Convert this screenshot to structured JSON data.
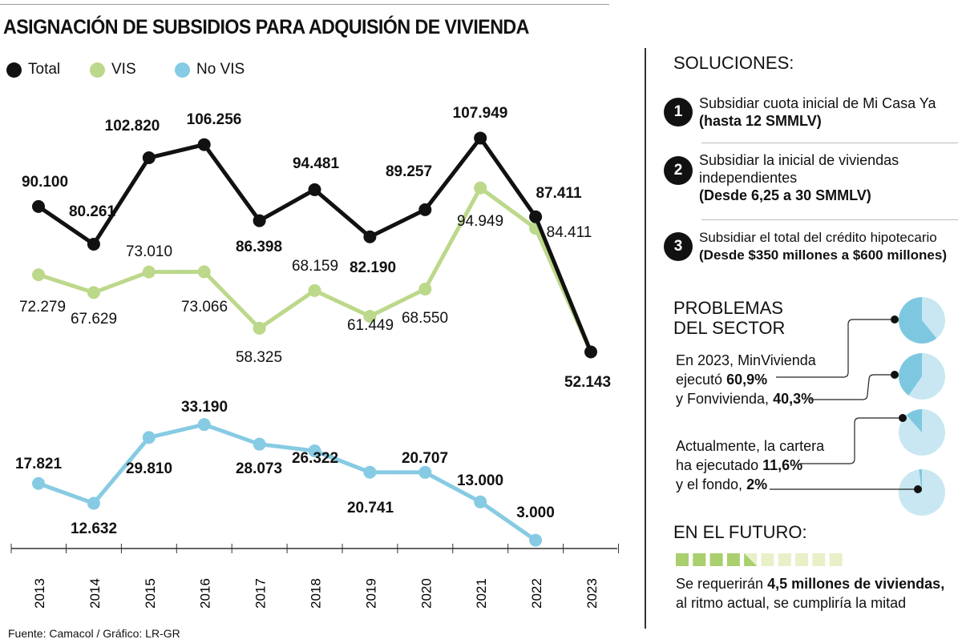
{
  "title": "ASIGNACIÓN DE SUBSIDIOS PARA ADQUISIÓN DE VIVIENDA",
  "colors": {
    "total": "#111111",
    "vis": "#bcd88a",
    "novis": "#86cbe3",
    "pie_dark": "#7dc8e0",
    "pie_light": "#c8e7f2",
    "sq_dark": "#a9cf6e",
    "sq_light": "#e8f0c8"
  },
  "chart_data": {
    "type": "line",
    "categories": [
      "2013",
      "2014",
      "2015",
      "2016",
      "2017",
      "2018",
      "2019",
      "2020",
      "2021",
      "2022",
      "2023"
    ],
    "series": [
      {
        "name": "Total",
        "values": [
          90100,
          80261,
          102820,
          106256,
          86398,
          94481,
          82190,
          89257,
          107949,
          87411,
          52143
        ],
        "labels": [
          "90.100",
          "80.261",
          "102.820",
          "106.256",
          "86.398",
          "94.481",
          "82.190",
          "89.257",
          "107.949",
          "87.411",
          "52.143"
        ]
      },
      {
        "name": "VIS",
        "values": [
          72279,
          67629,
          73010,
          73066,
          58325,
          68159,
          61449,
          68550,
          94949,
          84411,
          52143
        ],
        "labels": [
          "72.279",
          "67.629",
          "73.010",
          "73.066",
          "58.325",
          "68.159",
          "61.449",
          "68.550",
          "94.949",
          "84.411",
          ""
        ]
      },
      {
        "name": "No VIS",
        "values": [
          17821,
          12632,
          29810,
          33190,
          28073,
          26322,
          20741,
          20707,
          13000,
          3000,
          null
        ],
        "labels": [
          "17.821",
          "12.632",
          "29.810",
          "33.190",
          "28.073",
          "26.322",
          "20.741",
          "20.707",
          "13.000",
          "3.000",
          ""
        ]
      }
    ],
    "legend": "top-left",
    "grid": false,
    "ylim": [
      0,
      110000
    ]
  },
  "legend": {
    "total": "Total",
    "vis": "VIS",
    "novis": "No VIS"
  },
  "soluciones": {
    "heading": "SOLUCIONES:",
    "items": [
      {
        "n": "1",
        "text": "Subsidiar cuota inicial de Mi Casa Ya",
        "bold": "(hasta 12 SMMLV)"
      },
      {
        "n": "2",
        "text": "Subsidiar la inicial de viviendas independientes",
        "bold": "(Desde 6,25 a 30 SMMLV)"
      },
      {
        "n": "3",
        "text": "Subsidiar el total del crédito hipotecario",
        "bold": "(Desde $350 millones a $600 millones)"
      }
    ]
  },
  "problemas": {
    "heading1": "PROBLEMAS",
    "heading2": "DEL SECTOR",
    "l1": "En 2023, MinVivienda",
    "l2a": "ejecutó",
    "l2b": "60,9%",
    "l3a": "y Fonvivienda,",
    "l3b": "40,3%",
    "l4": "Actualmente, la cartera",
    "l5a": "ha ejecutado",
    "l5b": "11,6%",
    "l6a": "y el fondo,",
    "l6b": "2%",
    "pies": [
      60.9,
      40.3,
      11.6,
      2
    ]
  },
  "futuro": {
    "heading": "EN EL FUTURO:",
    "progress": 4.5,
    "total_squares": 10,
    "l1a": "Se requerirán",
    "l1b": "4,5 millones de viviendas,",
    "l2": "al ritmo actual, se cumpliría la mitad"
  },
  "source": "Fuente: Camacol / Gráfico: LR-GR"
}
